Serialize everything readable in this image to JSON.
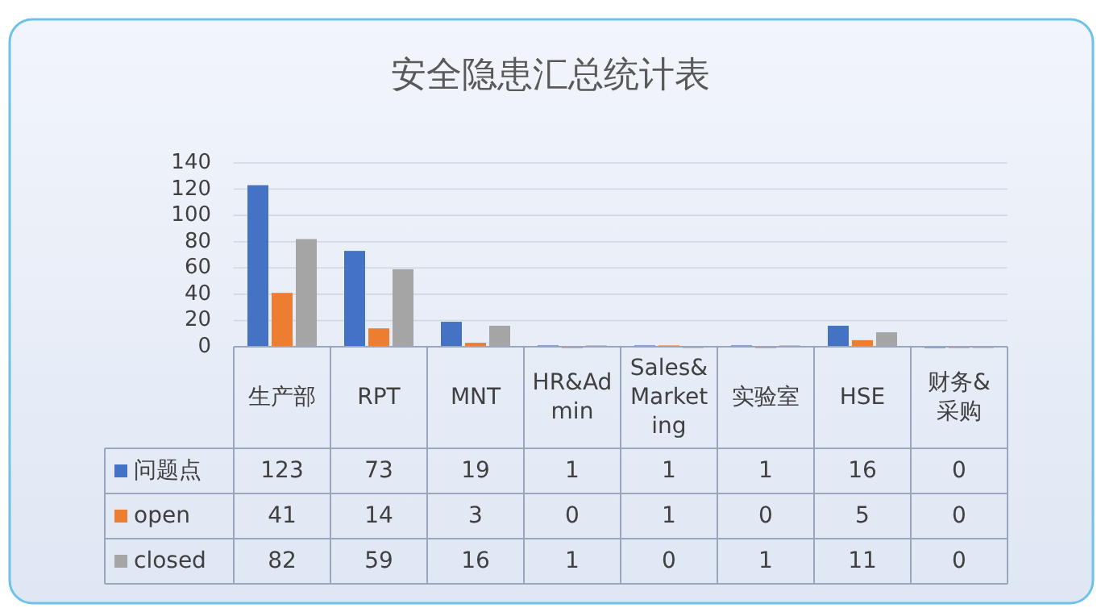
{
  "chart_data": {
    "type": "bar",
    "title": "安全隐患汇总统计表",
    "categories": [
      "生产部",
      "RPT",
      "MNT",
      "HR&Admin",
      "Sales&Marketing",
      "实验室",
      "HSE",
      "财务&采购"
    ],
    "series": [
      {
        "name": "问题点",
        "color": "#4472c4",
        "values": [
          123,
          73,
          19,
          1,
          1,
          1,
          16,
          0
        ]
      },
      {
        "name": "open",
        "color": "#ed7d31",
        "values": [
          41,
          14,
          3,
          0,
          1,
          0,
          5,
          0
        ]
      },
      {
        "name": "closed",
        "color": "#a5a5a5",
        "values": [
          82,
          59,
          16,
          1,
          0,
          1,
          11,
          0
        ]
      }
    ],
    "ylim": [
      0,
      140
    ],
    "yticks": [
      0,
      20,
      40,
      60,
      80,
      100,
      120,
      140
    ],
    "grid": "y",
    "data_labels": true,
    "legend": "bottom left"
  }
}
